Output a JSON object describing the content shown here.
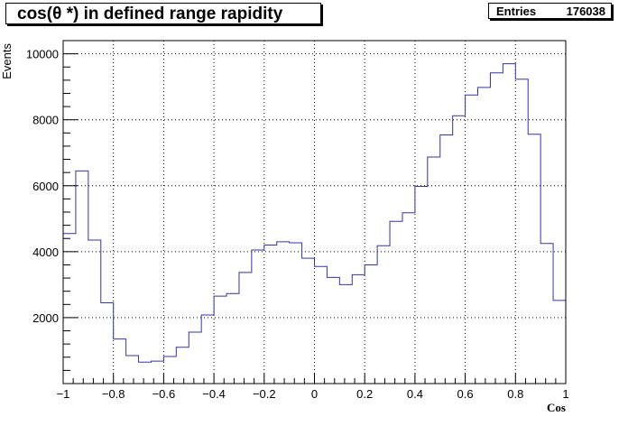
{
  "chart_data": {
    "type": "histogram",
    "title": "cos(θ *) in defined range rapidity",
    "xlabel": "Cos",
    "ylabel": "Events",
    "xlim": [
      -1,
      1
    ],
    "ylim": [
      0,
      10400
    ],
    "grid": true,
    "stats": {
      "label": "Entries",
      "value": "176038"
    },
    "x_ticks": [
      "-1",
      "-0.8",
      "-0.6",
      "-0.4",
      "-0.2",
      "0",
      "0.2",
      "0.4",
      "0.6",
      "0.8",
      "1"
    ],
    "x_tick_values": [
      -1,
      -0.8,
      -0.6,
      -0.4,
      -0.2,
      0,
      0.2,
      0.4,
      0.6,
      0.8,
      1
    ],
    "y_ticks": [
      "2000",
      "4000",
      "6000",
      "8000",
      "10000"
    ],
    "y_tick_values": [
      2000,
      4000,
      6000,
      8000,
      10000
    ],
    "bin_edges_range": [
      -1,
      1
    ],
    "bin_count": 40,
    "values": [
      4550,
      6450,
      4350,
      2450,
      1350,
      850,
      650,
      680,
      820,
      1100,
      1560,
      2080,
      2650,
      2730,
      3370,
      4050,
      4200,
      4300,
      4270,
      3800,
      3550,
      3220,
      3000,
      3300,
      3600,
      4180,
      4920,
      5180,
      5980,
      6870,
      7540,
      8120,
      8750,
      8980,
      9420,
      9700,
      9230,
      7560,
      4250,
      2520
    ],
    "line_color": "#3333aa"
  }
}
